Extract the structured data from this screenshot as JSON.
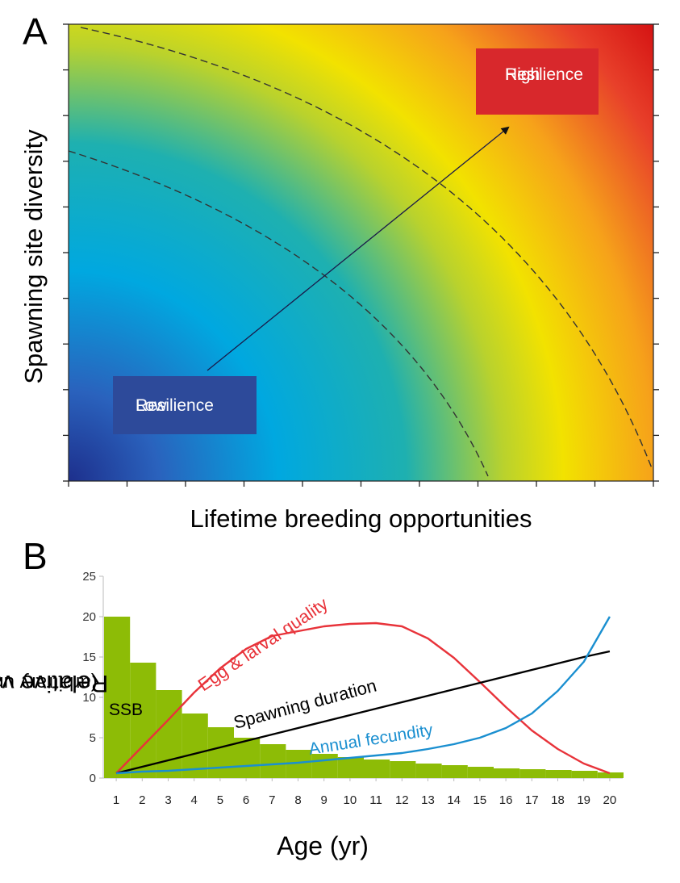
{
  "panel_a": {
    "letter": "A",
    "ylabel": "Spawning site diversity",
    "xlabel": "Lifetime breeding opportunities",
    "low_label_1": "Low",
    "low_label_2": "Resilience",
    "high_label_1": "High",
    "high_label_2": "Resilience",
    "colors": {
      "low": "#2d4a9a",
      "high": "#d8282c",
      "mid": "#f2e200"
    }
  },
  "panel_b": {
    "letter": "B",
    "ylabel_line1": "Relative value",
    "ylabel_line2": "(arbitrary units)",
    "xlabel": "Age (yr)",
    "labels": {
      "ssb": "SSB",
      "egg": "Egg  & larval quality",
      "duration": "Spawning duration",
      "fecundity": "Annual fecundity"
    }
  },
  "chart_data": [
    {
      "type": "heatmap",
      "xlabel": "Lifetime breeding opportunities",
      "ylabel": "Spawning site diversity",
      "annotations": [
        "Low Resilience",
        "High Resilience"
      ],
      "gradient": [
        "#2d4a9a",
        "#00a8e0",
        "#f2e200",
        "#d8282c"
      ],
      "x_ticks": 11,
      "y_ticks": 11
    },
    {
      "type": "bar",
      "xlabel": "Age (yr)",
      "ylabel": "Relative value (arbitrary units)",
      "ylim": [
        0,
        25
      ],
      "yticks": [
        0,
        5,
        10,
        15,
        20,
        25
      ],
      "categories": [
        "1",
        "2",
        "3",
        "4",
        "5",
        "6",
        "7",
        "8",
        "9",
        "10",
        "11",
        "12",
        "13",
        "14",
        "15",
        "16",
        "17",
        "18",
        "19",
        "20"
      ],
      "series": [
        {
          "name": "SSB",
          "kind": "bar",
          "color": "#8dbc06",
          "values": [
            20,
            14.3,
            10.9,
            8,
            6.3,
            5,
            4.2,
            3.5,
            3,
            2.6,
            2.3,
            2.1,
            1.8,
            1.6,
            1.4,
            1.2,
            1.1,
            1.0,
            0.9,
            0.7
          ]
        },
        {
          "name": "Egg  & larval quality",
          "kind": "line",
          "color": "#e8333a",
          "values": [
            0.6,
            3.9,
            7.2,
            10.6,
            13.6,
            16.0,
            17.6,
            18.2,
            18.8,
            19.1,
            19.2,
            18.8,
            17.3,
            14.9,
            11.9,
            8.8,
            5.9,
            3.6,
            1.8,
            0.6
          ]
        },
        {
          "name": "Spawning duration",
          "kind": "line",
          "color": "#000000",
          "values": [
            0.6,
            1.4,
            2.2,
            3.0,
            3.8,
            4.6,
            5.4,
            6.2,
            7.0,
            7.8,
            8.6,
            9.4,
            10.2,
            11.0,
            11.8,
            12.6,
            13.4,
            14.2,
            15.0,
            15.7
          ]
        },
        {
          "name": "Annual fecundity",
          "kind": "line",
          "color": "#1a8fd0",
          "values": [
            0.6,
            0.8,
            0.9,
            1.1,
            1.3,
            1.5,
            1.7,
            1.9,
            2.2,
            2.5,
            2.8,
            3.1,
            3.6,
            4.2,
            5.0,
            6.2,
            8.0,
            10.8,
            14.4,
            20.0
          ]
        }
      ]
    }
  ]
}
